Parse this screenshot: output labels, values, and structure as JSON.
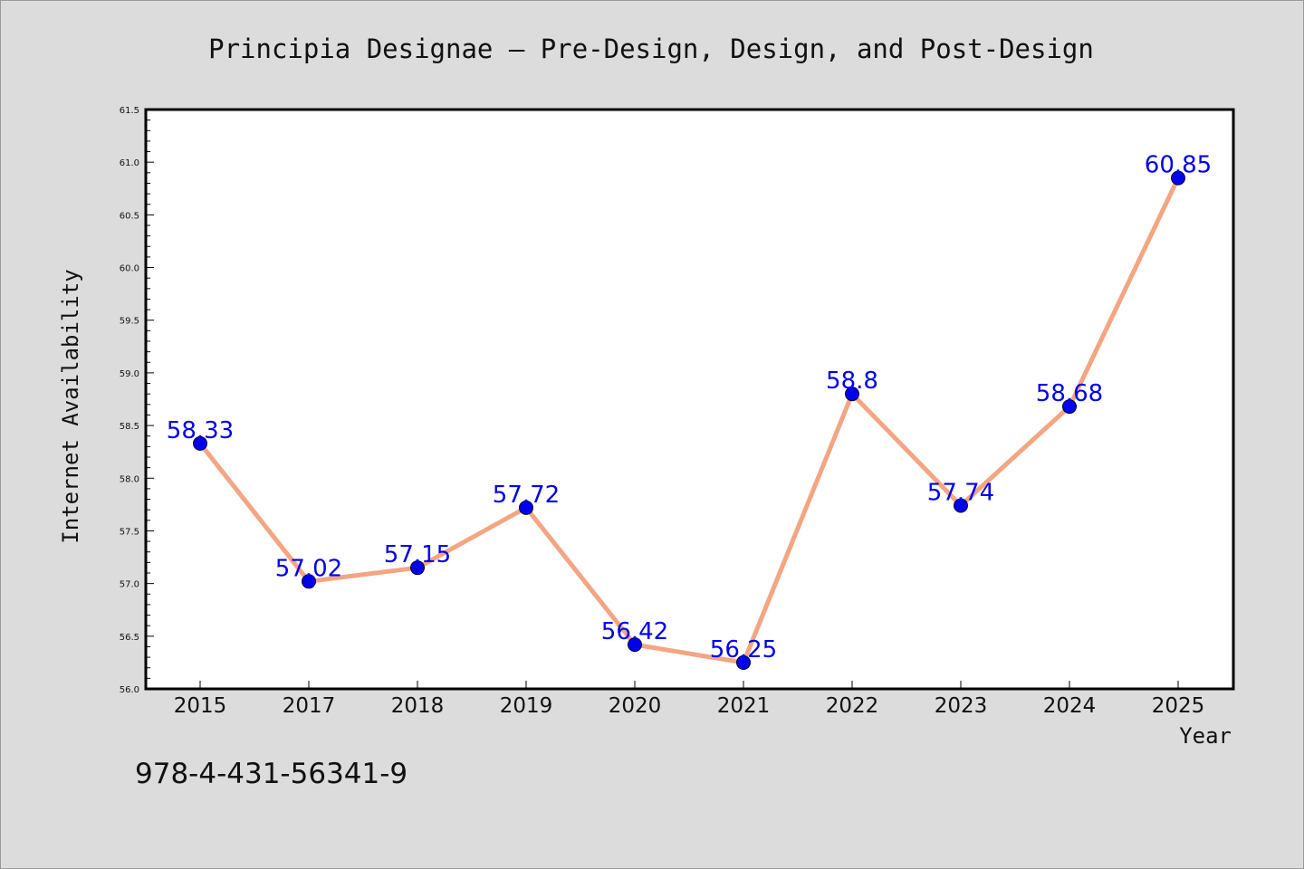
{
  "chart_data": {
    "type": "line",
    "title": "Principia Designae — Pre-Design, Design, and Post-Design",
    "xlabel": "Year",
    "ylabel": "Internet Availability",
    "categories": [
      "2015",
      "2017",
      "2018",
      "2019",
      "2020",
      "2021",
      "2022",
      "2023",
      "2024",
      "2025"
    ],
    "series": [
      {
        "values": [
          58.33,
          57.02,
          57.15,
          57.72,
          56.42,
          56.25,
          58.8,
          57.74,
          58.68,
          60.85
        ],
        "labels": [
          "58.33",
          "57.02",
          "57.15",
          "57.72",
          "56.42",
          "56.25",
          "58.8",
          "57.74",
          "58.68",
          "60.85"
        ]
      }
    ],
    "ylim": [
      56.0,
      61.5
    ],
    "yticks": [
      "56.0",
      "56.5",
      "57.0",
      "57.5",
      "58.0",
      "58.5",
      "59.0",
      "59.5",
      "60.0",
      "60.5",
      "61.0",
      "61.5"
    ],
    "grid": false,
    "legend": "none",
    "line_color": "#f4a582",
    "marker_color": "#0000ee",
    "label_color": "#0000ee"
  },
  "footer": {
    "isbn": "978-4-431-56341-9"
  }
}
